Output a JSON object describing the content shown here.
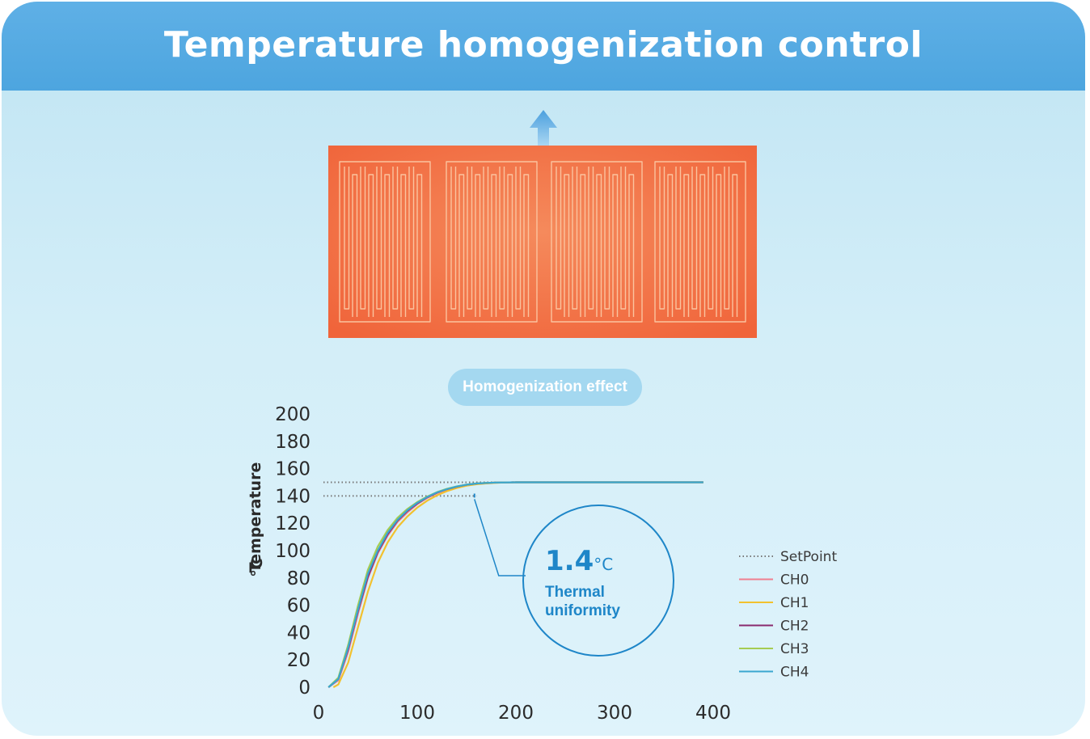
{
  "header": {
    "title": "Temperature homogenization control"
  },
  "badge": {
    "label": "Homogenization effect"
  },
  "annotation": {
    "value": "1.4",
    "unit": "°C",
    "caption_line1": "Thermal",
    "caption_line2": "uniformity"
  },
  "colors": {
    "banner": "#4da5df",
    "heater": "#f6764a",
    "accent": "#1e86c8",
    "setpoint": "#777777"
  },
  "chart_data": {
    "type": "line",
    "title": "",
    "xlabel": "",
    "ylabel": "Temperature",
    "ylabel_unit": "°C",
    "xlim": [
      0,
      400
    ],
    "ylim": [
      0,
      200
    ],
    "x_ticks": [
      0,
      100,
      200,
      300,
      400
    ],
    "y_ticks": [
      0,
      20,
      40,
      60,
      80,
      100,
      120,
      140,
      160,
      180,
      200
    ],
    "grid": false,
    "legend_position": "right",
    "reference_lines": [
      {
        "name": "SetPoint",
        "x": [
          0,
          180
        ],
        "y": [
          150,
          150
        ],
        "style": "dotted",
        "color": "#777777"
      },
      {
        "name": "",
        "x": [
          0,
          160
        ],
        "y": [
          140,
          140
        ],
        "style": "dotted",
        "color": "#777777"
      }
    ],
    "series": [
      {
        "name": "CH0",
        "color": "#f07f8f",
        "x": [
          10,
          20,
          30,
          40,
          50,
          60,
          70,
          80,
          90,
          100,
          110,
          120,
          130,
          140,
          150,
          160,
          170,
          180,
          190,
          200,
          250,
          300,
          350,
          390
        ],
        "y": [
          0,
          5,
          26,
          54,
          80,
          98,
          111,
          121,
          128,
          134,
          138.5,
          142,
          144.5,
          146.5,
          148,
          149,
          149.4,
          149.7,
          149.9,
          150,
          150,
          150,
          150,
          150
        ]
      },
      {
        "name": "CH1",
        "color": "#f2c12e",
        "x": [
          15,
          20,
          30,
          40,
          50,
          60,
          70,
          80,
          90,
          100,
          110,
          120,
          130,
          140,
          150,
          160,
          170,
          180,
          190,
          200,
          250,
          300,
          350,
          390
        ],
        "y": [
          0,
          2,
          18,
          44,
          70,
          91,
          106,
          117,
          125,
          131.5,
          136.5,
          140.5,
          143.5,
          145.8,
          147.5,
          148.6,
          149.2,
          149.6,
          149.9,
          150,
          150,
          150,
          150,
          150
        ]
      },
      {
        "name": "CH2",
        "color": "#8a2a6e",
        "x": [
          10,
          20,
          30,
          40,
          50,
          60,
          70,
          80,
          90,
          100,
          110,
          120,
          130,
          140,
          150,
          160,
          170,
          180,
          190,
          200,
          250,
          300,
          350,
          390
        ],
        "y": [
          0,
          6,
          28,
          56,
          81,
          99,
          112,
          122,
          129,
          134.5,
          139,
          142.5,
          145,
          146.8,
          148.2,
          149.1,
          149.5,
          149.8,
          149.9,
          150,
          150,
          150,
          150,
          150
        ]
      },
      {
        "name": "CH3",
        "color": "#a6cc52",
        "x": [
          10,
          20,
          30,
          40,
          50,
          60,
          70,
          80,
          90,
          100,
          110,
          120,
          130,
          140,
          150,
          160,
          170,
          180,
          190,
          200,
          250,
          300,
          350,
          390
        ],
        "y": [
          0,
          7,
          31,
          60,
          86,
          103,
          115,
          124,
          130.5,
          135.5,
          139.5,
          142.8,
          145.2,
          147,
          148.3,
          149.2,
          149.6,
          149.8,
          149.9,
          150,
          150,
          150,
          150,
          150
        ]
      },
      {
        "name": "CH4",
        "color": "#3aa7d0",
        "x": [
          10,
          20,
          30,
          40,
          50,
          60,
          70,
          80,
          90,
          100,
          110,
          120,
          130,
          140,
          150,
          160,
          170,
          180,
          190,
          200,
          250,
          300,
          350,
          390
        ],
        "y": [
          0,
          6,
          29,
          57,
          83,
          100,
          113,
          122.5,
          129.5,
          135,
          139.2,
          142.6,
          145,
          146.9,
          148.2,
          149.1,
          149.5,
          149.8,
          149.9,
          150,
          150,
          150,
          150,
          150
        ]
      }
    ]
  }
}
